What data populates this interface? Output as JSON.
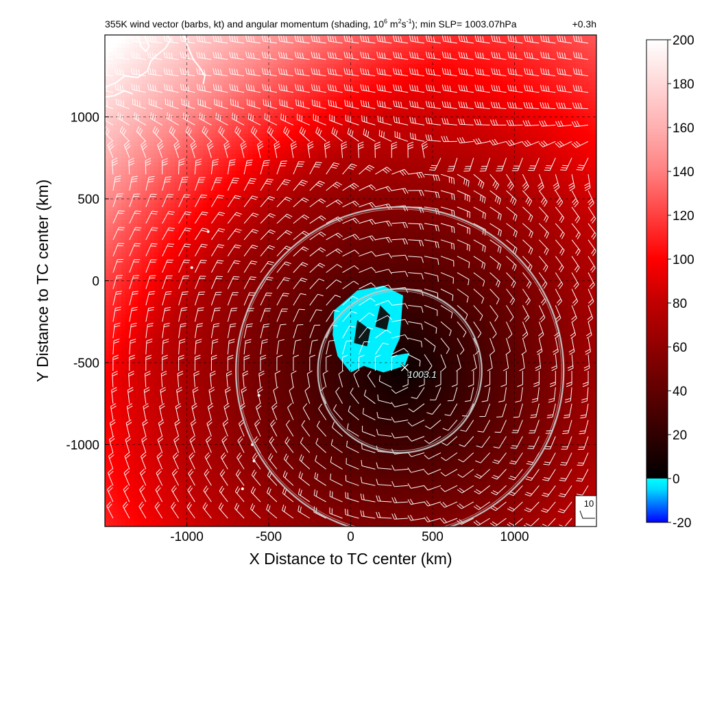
{
  "chart_data": {
    "type": "heatmap",
    "title_text": "355K wind vector (barbs, kt) and angular momentum (shading, 10",
    "title_sup1": "6",
    "title_mid": " m",
    "title_sup2": "2",
    "title_mid2": "s",
    "title_sup3": "-1",
    "title_end": "); min SLP= 1003.07hPa",
    "time_label": "+0.3h",
    "xlabel": "X Distance to TC center (km)",
    "ylabel": "Y Distance to TC center (km)",
    "xlim": [
      -1500,
      1500
    ],
    "ylim": [
      -1500,
      1500
    ],
    "xticks": [
      -1000,
      -500,
      0,
      500,
      1000
    ],
    "yticks": [
      -1000,
      -500,
      0,
      500,
      1000
    ],
    "grid": "dashed",
    "colorbar": {
      "range": [
        -20,
        200
      ],
      "ticks": [
        -20,
        0,
        20,
        40,
        60,
        80,
        100,
        120,
        140,
        160,
        180,
        200
      ],
      "stops": [
        {
          "value": -20,
          "color": "#0000ff"
        },
        {
          "value": -5,
          "color": "#00d8ff"
        },
        {
          "value": 0,
          "color": "#00ffff"
        },
        {
          "value": 0.01,
          "color": "#000000"
        },
        {
          "value": 20,
          "color": "#300000"
        },
        {
          "value": 40,
          "color": "#600000"
        },
        {
          "value": 60,
          "color": "#900000"
        },
        {
          "value": 80,
          "color": "#c00000"
        },
        {
          "value": 100,
          "color": "#ff0000"
        },
        {
          "value": 120,
          "color": "#ff4040"
        },
        {
          "value": 140,
          "color": "#ff8080"
        },
        {
          "value": 160,
          "color": "#ffb0b0"
        },
        {
          "value": 180,
          "color": "#ffd8d8"
        },
        {
          "value": 200,
          "color": "#ffffff"
        }
      ]
    },
    "field_model": {
      "center": [
        300,
        -550
      ],
      "base": 4,
      "radial_gain": 0.052,
      "northwest_gain": 0.028,
      "max": 200
    },
    "negative_region": {
      "center": [
        150,
        -250
      ],
      "label": "negative angular momentum patch"
    },
    "circles": [
      {
        "center": [
          300,
          -550
        ],
        "radius": 500
      },
      {
        "center": [
          300,
          -550
        ],
        "radius": 1000
      }
    ],
    "min_slp_marker": {
      "x": 330,
      "y": -530,
      "label": "1003.1"
    },
    "barbs": {
      "spacing": 100,
      "reference_value": "10"
    },
    "colors": {
      "coast": "#ffffff",
      "ring": "#c8c8c8",
      "barb": "#ffffff"
    }
  }
}
